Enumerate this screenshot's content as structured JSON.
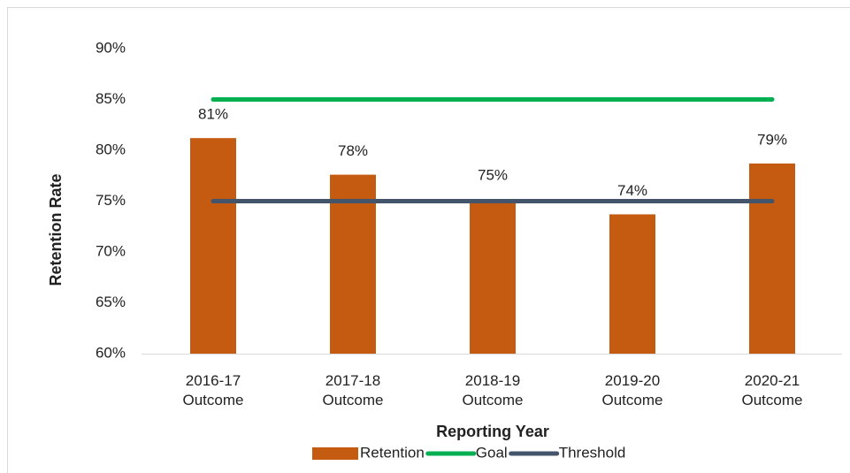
{
  "chart_data": {
    "type": "bar",
    "xlabel": "Reporting Year",
    "ylabel": "Retention Rate",
    "categories": [
      "2016-17 Outcome",
      "2017-18 Outcome",
      "2018-19 Outcome",
      "2019-20 Outcome",
      "2020-21 Outcome"
    ],
    "series": [
      {
        "name": "Retention",
        "type": "bar",
        "color": "#c55a11",
        "values": [
          81.2,
          77.6,
          75.2,
          73.7,
          78.7
        ],
        "value_labels": [
          "81%",
          "78%",
          "75%",
          "74%",
          "79%"
        ]
      },
      {
        "name": "Goal",
        "type": "line",
        "color": "#00b050",
        "values": [
          85,
          85,
          85,
          85,
          85
        ]
      },
      {
        "name": "Threshold",
        "type": "line",
        "color": "#44546a",
        "values": [
          75,
          75,
          75,
          75,
          75
        ]
      }
    ],
    "ylim": [
      60,
      90
    ],
    "yticks": [
      {
        "value": 60,
        "label": "60%"
      },
      {
        "value": 65,
        "label": "65%"
      },
      {
        "value": 70,
        "label": "70%"
      },
      {
        "value": 75,
        "label": "75%"
      },
      {
        "value": 80,
        "label": "80%"
      },
      {
        "value": 85,
        "label": "85%"
      },
      {
        "value": 90,
        "label": "90%"
      }
    ],
    "grid": false,
    "legend": "bottom"
  }
}
